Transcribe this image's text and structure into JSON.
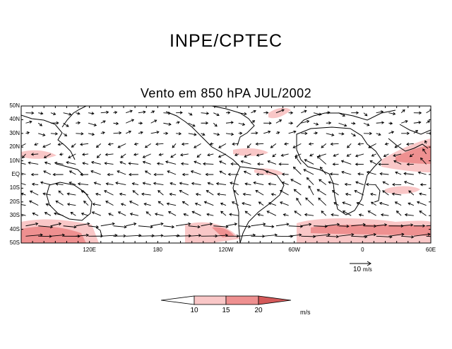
{
  "header": {
    "title": "INPE/CPTEC"
  },
  "map": {
    "title": "Vento em 850 hPA JUL/2002",
    "lat_labels": [
      "50N",
      "40N",
      "30N",
      "20N",
      "10N",
      "EQ",
      "10S",
      "20S",
      "30S",
      "40S",
      "50S"
    ],
    "lon_labels": [
      {
        "text": "120E",
        "lon": 120
      },
      {
        "text": "180",
        "lon": 180
      },
      {
        "text": "120W",
        "lon": 240
      },
      {
        "text": "60W",
        "lon": 300
      },
      {
        "text": "0",
        "lon": 360
      },
      {
        "text": "60E",
        "lon": 420
      }
    ],
    "lon_range": [
      60,
      420
    ],
    "lat_range": [
      -50,
      50
    ]
  },
  "reference_vector": {
    "value": "10",
    "unit": "m/s"
  },
  "colorbar": {
    "levels": [
      "10",
      "15",
      "20"
    ],
    "unit": "m/s",
    "colors": [
      "#ffffff",
      "#f9c7c7",
      "#ee9090",
      "#d45a5a"
    ]
  }
}
